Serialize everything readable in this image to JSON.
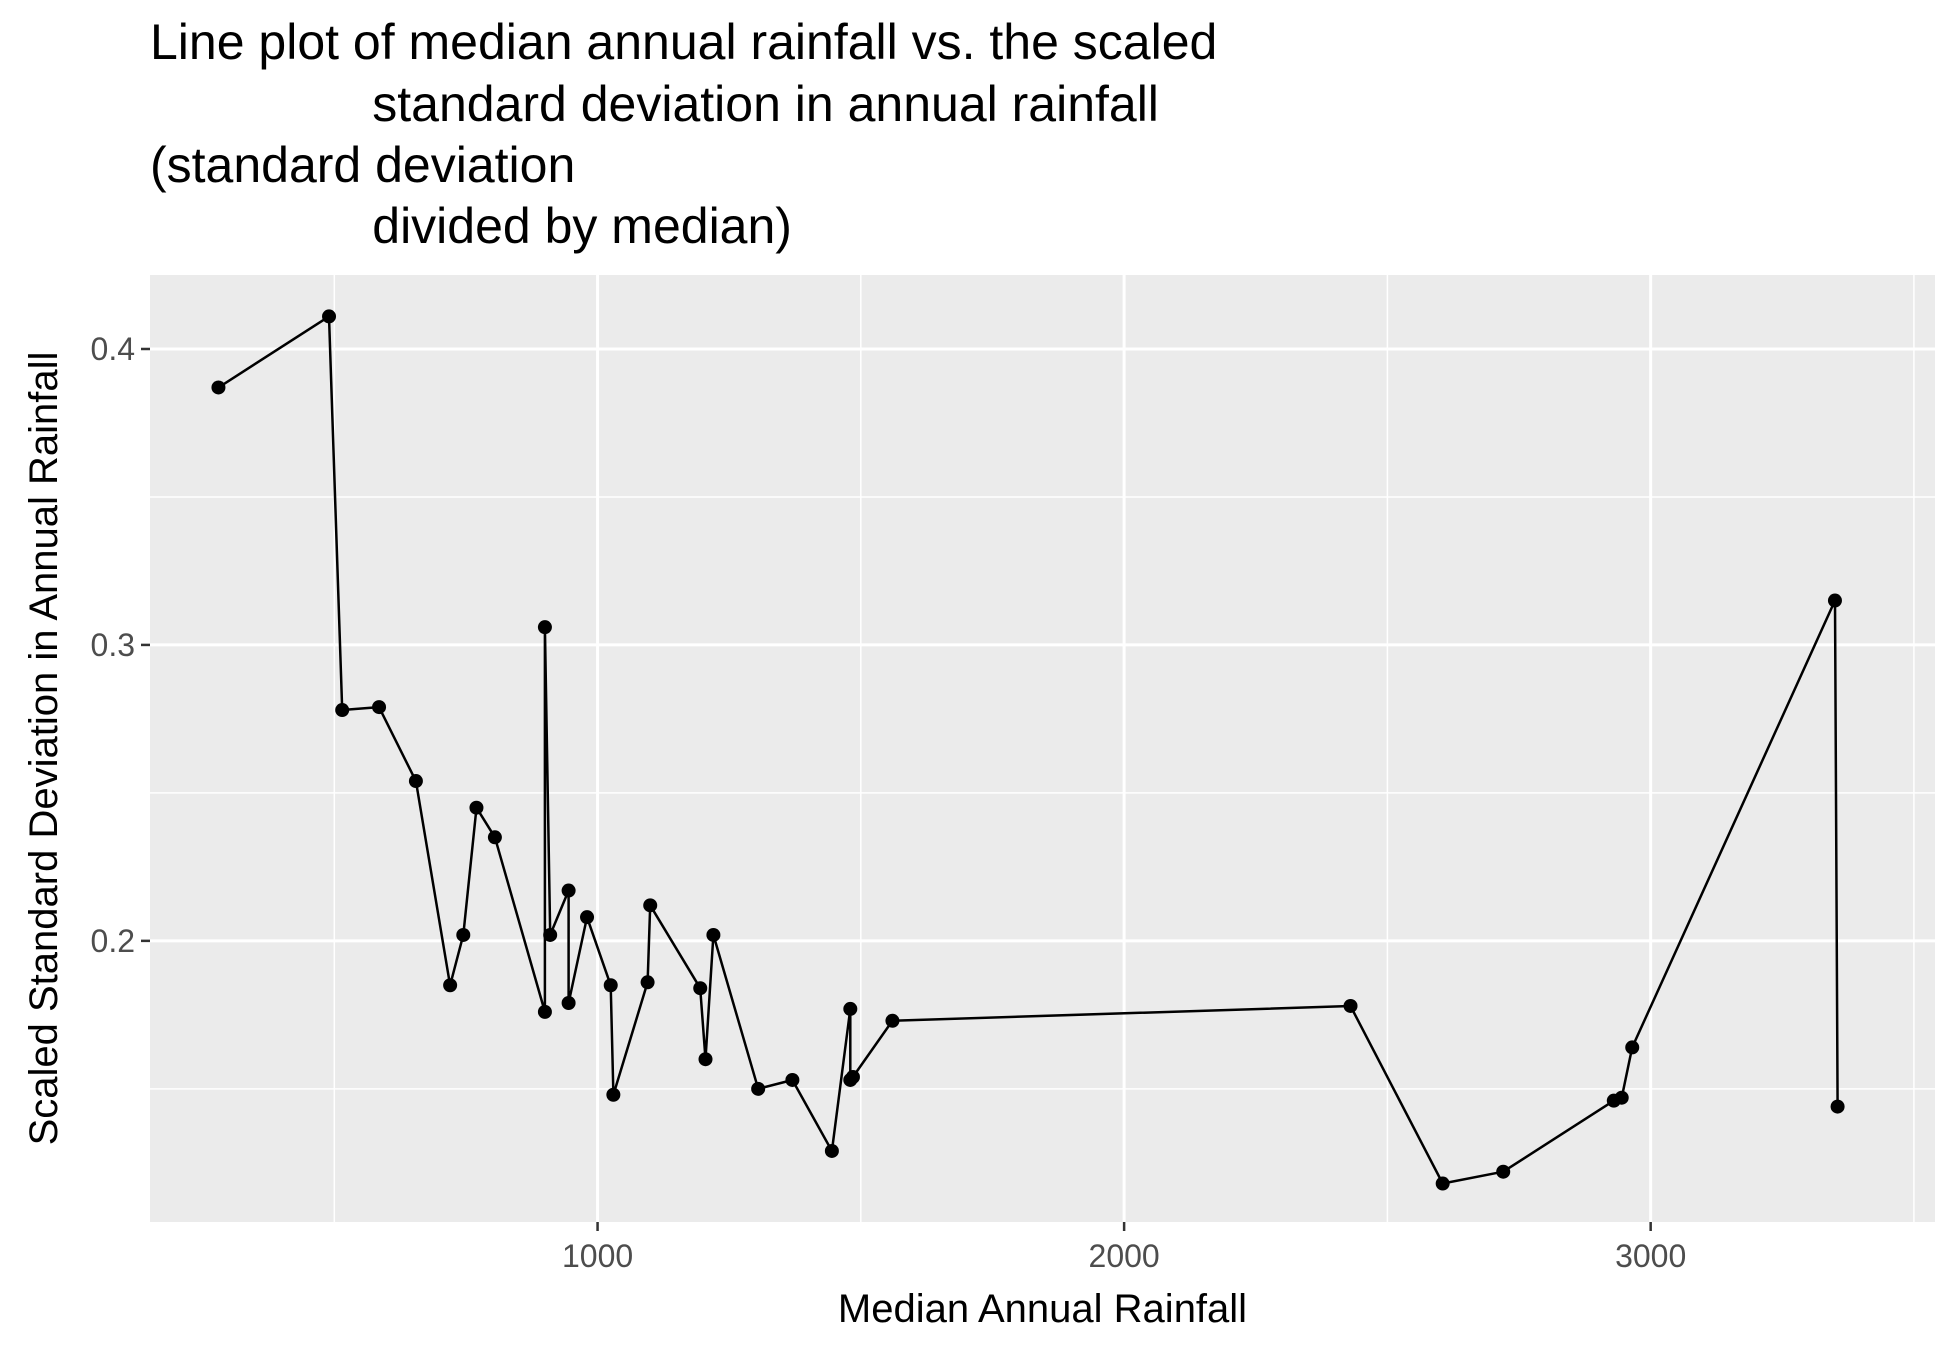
{
  "chart_data": {
    "type": "line",
    "title_lines": [
      "Line plot of median annual rainfall vs. the scaled",
      "                standard deviation in annual rainfall",
      "(standard deviation",
      "                divided by median)"
    ],
    "xlabel": "Median Annual Rainfall",
    "ylabel": "Scaled Standard Deviation in Annual Rainfall",
    "xlim": [
      150,
      3540
    ],
    "ylim": [
      0.105,
      0.425
    ],
    "x_ticks": [
      1000,
      2000,
      3000
    ],
    "x_tick_labels": [
      "1000",
      "2000",
      "3000"
    ],
    "y_ticks": [
      0.2,
      0.3,
      0.4
    ],
    "y_tick_labels": [
      "0.2",
      "0.3",
      "0.4"
    ],
    "grid": true,
    "panel_color": "#EBEBEB",
    "line_color": "#000000",
    "series": [
      {
        "x": [
          280,
          490,
          515,
          585,
          655,
          720,
          745,
          770,
          805,
          900,
          900,
          910,
          945,
          945,
          980,
          1025,
          1030,
          1095,
          1100,
          1195,
          1205,
          1220,
          1305,
          1370,
          1445,
          1480,
          1480,
          1485,
          1560,
          2430,
          2605,
          2720,
          2930,
          2945,
          2965,
          3350,
          3355
        ],
        "y": [
          0.387,
          0.411,
          0.278,
          0.279,
          0.254,
          0.185,
          0.202,
          0.245,
          0.235,
          0.176,
          0.306,
          0.202,
          0.217,
          0.179,
          0.208,
          0.185,
          0.148,
          0.186,
          0.212,
          0.184,
          0.16,
          0.202,
          0.15,
          0.153,
          0.129,
          0.177,
          0.153,
          0.154,
          0.173,
          0.178,
          0.118,
          0.122,
          0.146,
          0.147,
          0.164,
          0.315,
          0.144
        ]
      }
    ]
  }
}
